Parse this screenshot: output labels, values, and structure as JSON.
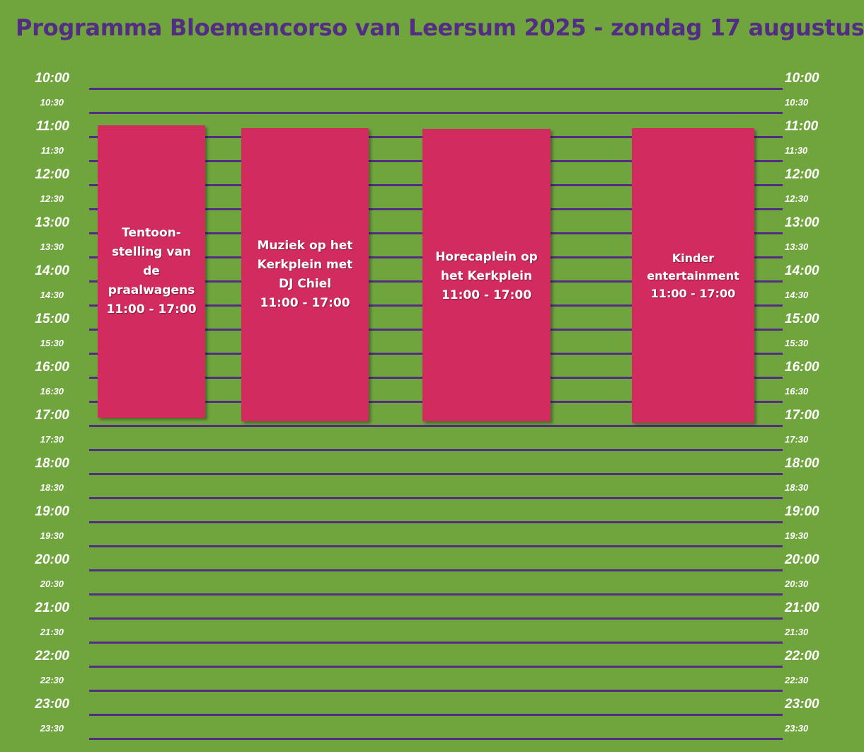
{
  "title": "Programma Bloemencorso van Leersum 2025 - zondag 17 augustus",
  "colors": {
    "background": "#70a53e",
    "title": "#532d83",
    "grid_line": "#532d83",
    "event": "#d12b60",
    "label": "#ffffff"
  },
  "times": [
    "10:00",
    "10:30",
    "11:00",
    "11:30",
    "12:00",
    "12:30",
    "13:00",
    "13:30",
    "14:00",
    "14:30",
    "15:00",
    "15:30",
    "16:00",
    "16:30",
    "17:00",
    "17:30",
    "18:00",
    "18:30",
    "19:00",
    "19:30",
    "20:00",
    "20:30",
    "21:00",
    "21:30",
    "22:00",
    "22:30",
    "23:00",
    "23:30"
  ],
  "events": [
    {
      "id": "tentoonstelling",
      "name": "Tentoon-\nstelling van\nde\npraalwagens",
      "time": "11:00 - 17:00"
    },
    {
      "id": "muziek",
      "name": "Muziek op het\nKerkplein met\nDJ Chiel",
      "time": "11:00 - 17:00"
    },
    {
      "id": "horecaplein",
      "name": "Horecaplein op\nhet Kerkplein",
      "time": "11:00 - 17:00"
    },
    {
      "id": "kinder",
      "name": "Kinder\nentertainment",
      "time": "11:00 - 17:00"
    }
  ]
}
